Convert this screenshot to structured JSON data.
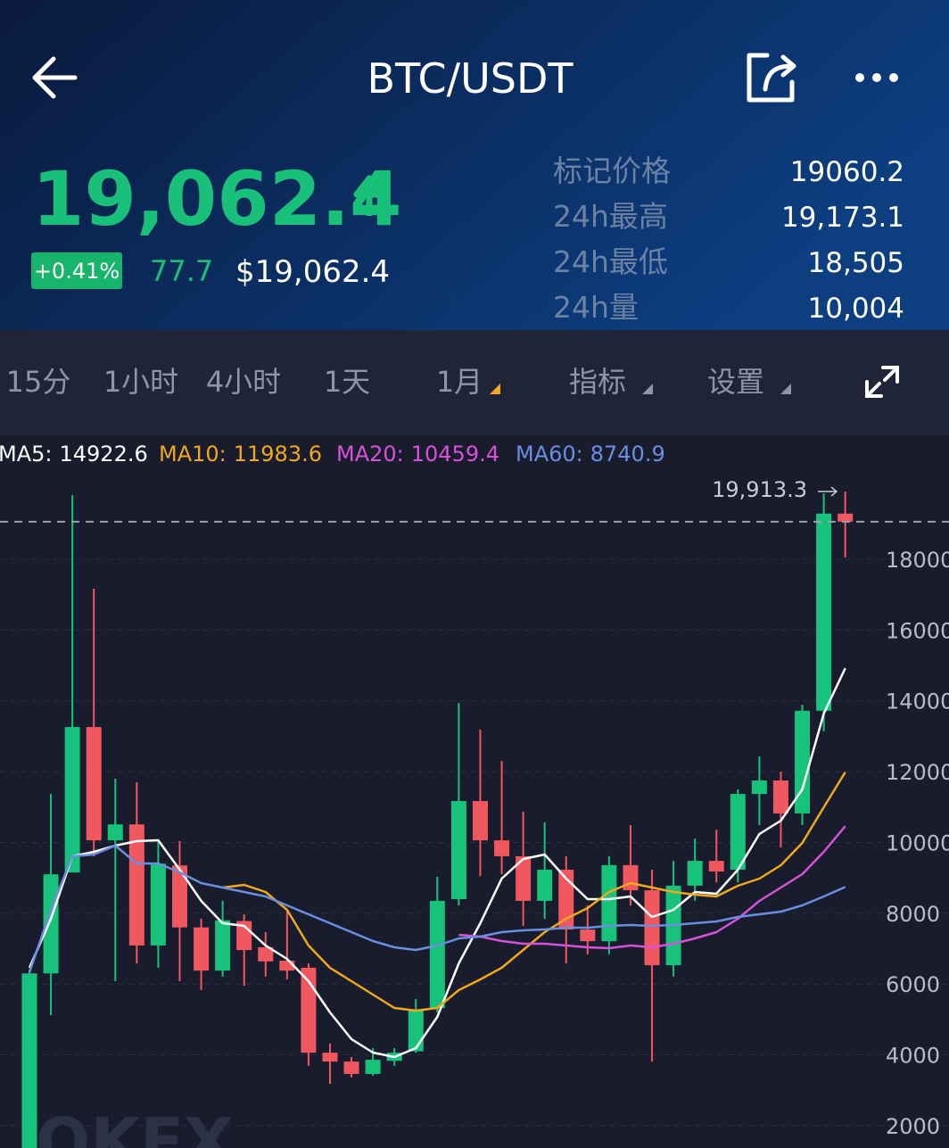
{
  "header": {
    "title": "BTC/USDT"
  },
  "ticker": {
    "price": "19,062.4",
    "change_pct": "+0.41%",
    "change": "77.7",
    "usd_price": "$19,062.4"
  },
  "stats": [
    {
      "label": "标记价格",
      "value": "19060.2"
    },
    {
      "label": "24h最高",
      "value": "19,173.1"
    },
    {
      "label": "24h最低",
      "value": "18,505"
    },
    {
      "label": "24h量",
      "value": "10,004"
    }
  ],
  "tabs": [
    "15分",
    "1小时",
    "4小时",
    "1天",
    "1月",
    "指标",
    "设置"
  ],
  "watermark": "OKEX",
  "chart_data": {
    "type": "candlestick",
    "up_color": "#17c27a",
    "down_color": "#f0575e",
    "ohlc": {
      "open": [
        1000,
        6300,
        9150,
        13260,
        10060,
        10510,
        7090,
        9350,
        7600,
        6380,
        7780,
        7040,
        6660,
        6460,
        4060,
        3810,
        3460,
        3830,
        4100,
        5320,
        8400,
        11170,
        10060,
        9610,
        8350,
        9230,
        7540,
        7210,
        9360,
        8650,
        6530,
        8780,
        9480,
        9230,
        11370,
        11750,
        10820,
        13720,
        19290
      ],
      "high": [
        6400,
        11370,
        19810,
        17170,
        11800,
        11700,
        10060,
        10040,
        7850,
        8350,
        7970,
        7470,
        8100,
        6580,
        4320,
        3940,
        4190,
        4190,
        5580,
        9030,
        13940,
        13190,
        12300,
        10870,
        10570,
        9610,
        8220,
        9610,
        10490,
        9230,
        9480,
        10110,
        10360,
        11500,
        12430,
        12000,
        13890,
        19860,
        19913.3
      ],
      "low": [
        900,
        5120,
        9150,
        9610,
        6080,
        6580,
        6460,
        6080,
        5830,
        6210,
        5950,
        6210,
        6130,
        3690,
        3180,
        3360,
        3410,
        3690,
        4060,
        5200,
        8220,
        9050,
        9100,
        7640,
        7840,
        6580,
        6840,
        6840,
        8220,
        3810,
        6210,
        8350,
        8870,
        8870,
        10490,
        9860,
        10490,
        13140,
        18050
      ],
      "close": [
        6300,
        9100,
        13260,
        10060,
        10510,
        7090,
        9400,
        7600,
        6380,
        7800,
        6960,
        6640,
        6380,
        4060,
        3810,
        3460,
        3860,
        4060,
        5250,
        8350,
        11170,
        10060,
        9610,
        8350,
        9230,
        7540,
        7210,
        9360,
        8650,
        6530,
        8780,
        9480,
        9180,
        11370,
        11750,
        10820,
        13720,
        19290,
        19062.4
      ]
    },
    "max_high_label": "19,913.3",
    "series": [
      {
        "name": "MA5:",
        "color": "#ffffff",
        "values": [
          6458,
          7844,
          9608,
          9734,
          9911,
          10037,
          10062,
          9230,
          8348,
          7718,
          7643,
          7088,
          6710,
          6080,
          5198,
          4442,
          4064,
          3938,
          4190,
          5072,
          6584,
          7718,
          8978,
          9533,
          9659,
          8978,
          8399,
          8399,
          8474,
          7895,
          8096,
          8600,
          8550,
          9230,
          10238,
          10616,
          11498,
          13640,
          14922.6
        ]
      },
      {
        "name": "MA10:",
        "color": "#f0a81c",
        "values": [
          null,
          null,
          null,
          null,
          null,
          null,
          null,
          null,
          null,
          8726,
          8802,
          8600,
          8096,
          7088,
          6458,
          6080,
          5702,
          5324,
          5249,
          5324,
          5828,
          6131,
          6458,
          6962,
          7466,
          7844,
          8147,
          8600,
          8852,
          8726,
          8600,
          8525,
          8474,
          8777,
          8978,
          9356,
          9986,
          10994,
          11983.6
        ]
      },
      {
        "name": "MA20:",
        "color": "#d752d9",
        "values": [
          null,
          null,
          null,
          null,
          null,
          null,
          null,
          null,
          null,
          null,
          null,
          null,
          null,
          null,
          null,
          null,
          null,
          null,
          null,
          null,
          7391,
          7340,
          7214,
          7139,
          7139,
          7088,
          7038,
          7013,
          7088,
          7038,
          7139,
          7290,
          7466,
          7844,
          8348,
          8726,
          9104,
          9734,
          10459.4
        ]
      },
      {
        "name": "MA60:",
        "color": "#6a8ee0",
        "values": [
          6332,
          8096,
          9608,
          9659,
          9911,
          9407,
          9407,
          9155,
          8852,
          8726,
          8600,
          8474,
          8222,
          7970,
          7718,
          7466,
          7214,
          7038,
          6962,
          7088,
          7290,
          7340,
          7466,
          7517,
          7542,
          7592,
          7592,
          7643,
          7668,
          7643,
          7668,
          7718,
          7769,
          7895,
          7970,
          8046,
          8222,
          8474,
          8740.9
        ]
      }
    ],
    "ylim": [
      1368,
      20192
    ],
    "yticks": [
      2000,
      4000,
      6000,
      8000,
      10000,
      12000,
      14000,
      16000,
      18000
    ],
    "grid": true
  }
}
